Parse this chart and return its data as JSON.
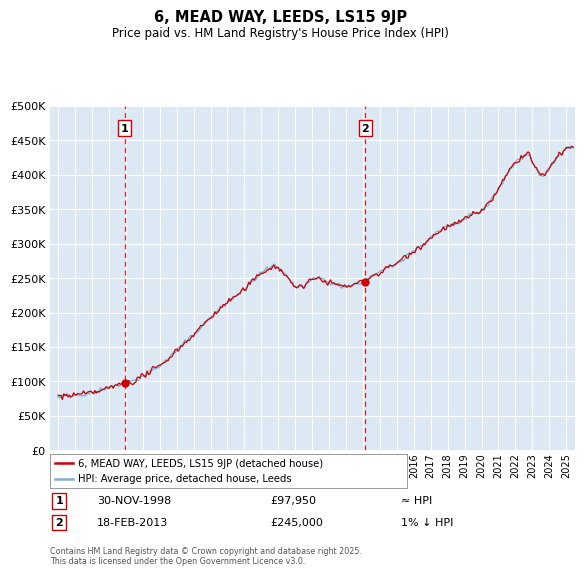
{
  "title": "6, MEAD WAY, LEEDS, LS15 9JP",
  "subtitle": "Price paid vs. HM Land Registry's House Price Index (HPI)",
  "ylim": [
    0,
    500000
  ],
  "yticks": [
    0,
    50000,
    100000,
    150000,
    200000,
    250000,
    300000,
    350000,
    400000,
    450000,
    500000
  ],
  "xlim": [
    1994.5,
    2025.5
  ],
  "background_color": "#dce9f5",
  "grid_color": "#ffffff",
  "red_line_color": "#cc0000",
  "blue_line_color": "#7bafd4",
  "sale1_year": 1998.92,
  "sale1_price": 97950,
  "sale2_year": 2013.13,
  "sale2_price": 245000,
  "sale1_label": "1",
  "sale2_label": "2",
  "sale1_date": "30-NOV-1998",
  "sale1_amount": "£97,950",
  "sale1_hpi": "≈ HPI",
  "sale2_date": "18-FEB-2013",
  "sale2_amount": "£245,000",
  "sale2_hpi": "1% ↓ HPI",
  "legend_line1": "6, MEAD WAY, LEEDS, LS15 9JP (detached house)",
  "legend_line2": "HPI: Average price, detached house, Leeds",
  "footnote": "Contains HM Land Registry data © Crown copyright and database right 2025.\nThis data is licensed under the Open Government Licence v3.0."
}
